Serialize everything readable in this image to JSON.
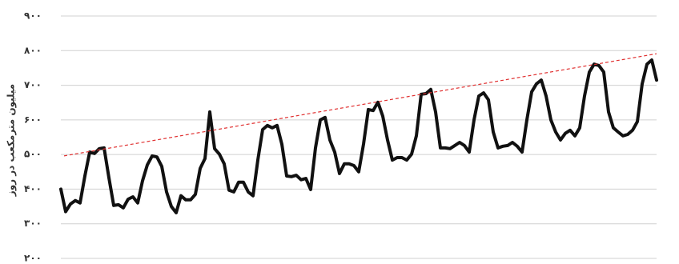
{
  "chart_data": {
    "type": "line",
    "y_label": "میلیون مترمکعب در روز",
    "ylim": [
      200,
      900
    ],
    "yticks": [
      {
        "value": 200,
        "label": "۲۰۰"
      },
      {
        "value": 300,
        "label": "۳۰۰"
      },
      {
        "value": 400,
        "label": "۴۰۰"
      },
      {
        "value": 500,
        "label": "۵۰۰"
      },
      {
        "value": 600,
        "label": "۶۰۰"
      },
      {
        "value": 700,
        "label": "۷۰۰"
      },
      {
        "value": 800,
        "label": "۸۰۰"
      },
      {
        "value": 900,
        "label": "۹۰۰"
      }
    ],
    "grid": true,
    "series": [
      {
        "color": "#111111",
        "values": [
          400,
          335,
          357,
          367,
          360,
          438,
          507,
          503,
          517,
          519,
          433,
          353,
          355,
          346,
          371,
          378,
          360,
          424,
          470,
          496,
          493,
          466,
          392,
          350,
          332,
          381,
          369,
          369,
          385,
          460,
          488,
          623,
          517,
          501,
          473,
          397,
          392,
          420,
          420,
          392,
          381,
          484,
          572,
          584,
          577,
          584,
          530,
          438,
          436,
          440,
          427,
          431,
          399,
          519,
          600,
          607,
          542,
          507,
          445,
          473,
          473,
          468,
          450,
          530,
          630,
          627,
          651,
          611,
          542,
          484,
          491,
          491,
          484,
          501,
          554,
          674,
          676,
          688,
          623,
          519,
          519,
          517,
          526,
          535,
          526,
          507,
          600,
          669,
          678,
          658,
          565,
          519,
          524,
          526,
          535,
          524,
          507,
          600,
          681,
          704,
          715,
          669,
          600,
          565,
          542,
          561,
          570,
          554,
          577,
          669,
          738,
          761,
          757,
          738,
          623,
          577,
          565,
          554,
          558,
          570,
          595,
          704,
          761,
          773,
          715
        ]
      }
    ],
    "trend": {
      "color": "#e03030",
      "values": [
        496,
        791
      ]
    }
  }
}
